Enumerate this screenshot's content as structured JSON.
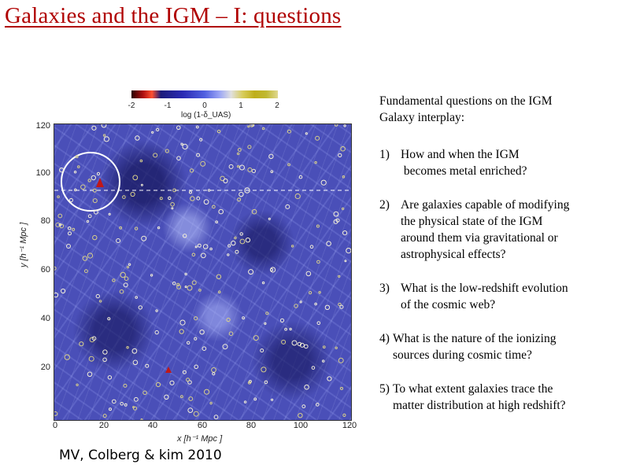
{
  "slide": {
    "title": "Galaxies and the IGM – I: questions",
    "credit": "MV, Colberg & kim 2010"
  },
  "figure": {
    "colorbar": {
      "ticks": [
        "-2",
        "-1",
        "0",
        "1",
        "2"
      ],
      "label": "log (1-δ_UAS)"
    },
    "y_ticks": [
      "120",
      "100",
      "80",
      "60",
      "40",
      "20"
    ],
    "x_ticks": [
      "0",
      "20",
      "40",
      "60",
      "80",
      "100",
      "120"
    ],
    "ylabel": "y [h⁻¹ Mpc ]",
    "xlabel": "x [h⁻¹ Mpc ]"
  },
  "questions": {
    "intro_line1": "Fundamental  questions on the IGM",
    "intro_line2": "Galaxy interplay:",
    "items": [
      {
        "num": "1)",
        "lines": [
          "How and when the IGM",
          " becomes metal enriched?"
        ]
      },
      {
        "num": "2)",
        "lines": [
          "Are galaxies capable of modifying",
          "the physical state of the IGM",
          "around them via gravitational or",
          "astrophysical effects?"
        ]
      },
      {
        "num": "3)",
        "lines": [
          "What is the low-redshift evolution",
          "of the cosmic web?"
        ]
      },
      {
        "num": "4)",
        "lines": [
          "What is the nature of the ionizing",
          "sources during cosmic time?"
        ]
      },
      {
        "num": "5)",
        "lines": [
          "To what extent galaxies trace the",
          "matter distribution at high redshift?"
        ]
      }
    ]
  },
  "colors": {
    "title": "#b00000",
    "map_base": "#4a4fb8"
  }
}
